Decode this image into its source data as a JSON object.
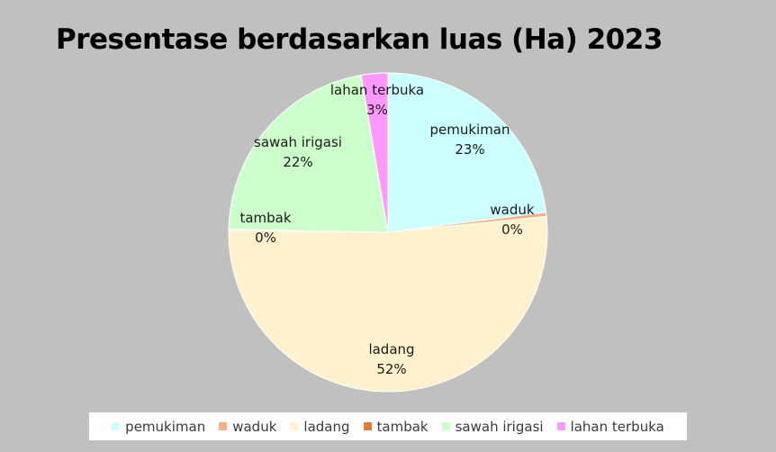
{
  "chart_data": {
    "type": "pie",
    "title": "Presentase berdasarkan luas (Ha) 2023",
    "categories": [
      "pemukiman",
      "waduk",
      "ladang",
      "tambak",
      "sawah irigasi",
      "lahan terbuka"
    ],
    "values": [
      23.0,
      0.4,
      51.8,
      0.1,
      22.0,
      2.7
    ],
    "data_labels": [
      "23%",
      "0%",
      "52%",
      "0%",
      "22%",
      "3%"
    ],
    "colors": [
      "#ccffff",
      "#f4b183",
      "#fff2cc",
      "#e07b39",
      "#ccffcc",
      "#ff99ff"
    ],
    "legend_position": "bottom",
    "start_angle_deg": 0,
    "direction": "clockwise"
  }
}
